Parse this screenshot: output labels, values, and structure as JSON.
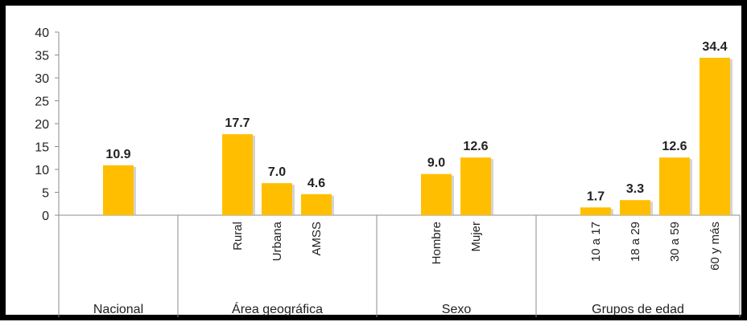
{
  "chart_data": {
    "type": "bar",
    "title": "",
    "xlabel": "",
    "ylabel": "",
    "ylim": [
      0,
      40
    ],
    "yticks": [
      "0",
      "5",
      "10",
      "15",
      "20",
      "25",
      "30",
      "35",
      "40"
    ],
    "grid": false,
    "bar_color": "#FFBF00",
    "groups": [
      {
        "label": "Nacional",
        "categories": [
          ""
        ],
        "values": [
          10.9
        ],
        "value_labels": [
          "10.9"
        ]
      },
      {
        "label": "Área geográfica",
        "categories": [
          "Rural",
          "Urbana",
          "AMSS"
        ],
        "values": [
          17.7,
          7.0,
          4.6
        ],
        "value_labels": [
          "17.7",
          "7.0",
          "4.6"
        ]
      },
      {
        "label": "Sexo",
        "categories": [
          "Hombre",
          "Mujer"
        ],
        "values": [
          9.0,
          12.6
        ],
        "value_labels": [
          "9.0",
          "12.6"
        ]
      },
      {
        "label": "Grupos de edad",
        "categories": [
          "10 a 17",
          "18 a 29",
          "30 a 59",
          "60 y más"
        ],
        "values": [
          1.7,
          3.3,
          12.6,
          34.4
        ],
        "value_labels": [
          "1.7",
          "3.3",
          "12.6",
          "34.4"
        ]
      }
    ]
  }
}
